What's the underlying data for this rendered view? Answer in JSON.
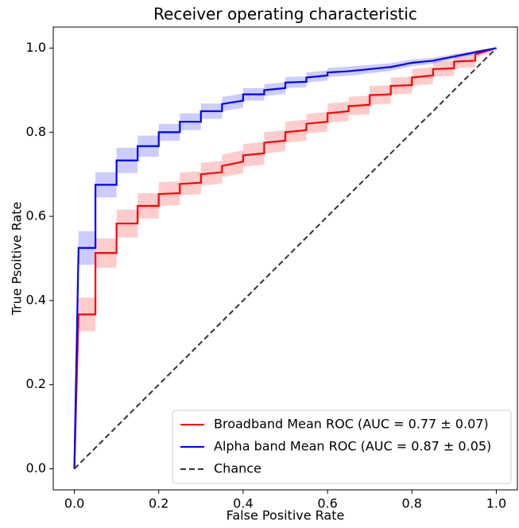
{
  "chart_data": {
    "type": "line",
    "title": "Receiver operating characteristic",
    "x_label": "False Positive Rate",
    "y_label": "True Psoitive Rate",
    "xlim": [
      -0.05,
      1.05
    ],
    "ylim": [
      -0.05,
      1.05
    ],
    "xticks": [
      {
        "value": 0,
        "label": "0.0"
      },
      0.2,
      0.4,
      0.6,
      0.8,
      {
        "value": 1,
        "label": "1.0"
      }
    ],
    "yticks": [
      {
        "value": 0,
        "label": "0.0"
      },
      0.2,
      0.4,
      0.6,
      0.8,
      {
        "value": 1,
        "label": "1.0"
      }
    ],
    "legend": "lower right",
    "series": [
      {
        "name": "Broadband Mean ROC (AUC = 0.77 ± 0.07)",
        "color": "#ff0000",
        "x": [
          0,
          0.01,
          0.05,
          0.05,
          0.1,
          0.1,
          0.15,
          0.15,
          0.2,
          0.2,
          0.25,
          0.25,
          0.3,
          0.3,
          0.35,
          0.35,
          0.4,
          0.4,
          0.45,
          0.45,
          0.5,
          0.5,
          0.55,
          0.55,
          0.6,
          0.6,
          0.65,
          0.65,
          0.7,
          0.7,
          0.75,
          0.75,
          0.8,
          0.8,
          0.85,
          0.85,
          0.9,
          0.9,
          0.95,
          0.95,
          1
        ],
        "values": [
          0,
          0.367,
          0.367,
          0.513,
          0.513,
          0.583,
          0.583,
          0.625,
          0.625,
          0.653,
          0.655,
          0.677,
          0.68,
          0.7,
          0.705,
          0.72,
          0.73,
          0.745,
          0.75,
          0.775,
          0.78,
          0.8,
          0.805,
          0.82,
          0.825,
          0.845,
          0.85,
          0.862,
          0.865,
          0.888,
          0.89,
          0.91,
          0.912,
          0.93,
          0.935,
          0.95,
          0.952,
          0.968,
          0.97,
          0.985,
          1
        ],
        "lower": [
          0,
          0.327,
          0.327,
          0.478,
          0.478,
          0.55,
          0.55,
          0.595,
          0.595,
          0.625,
          0.627,
          0.65,
          0.653,
          0.673,
          0.678,
          0.693,
          0.703,
          0.718,
          0.723,
          0.75,
          0.755,
          0.775,
          0.78,
          0.797,
          0.802,
          0.822,
          0.827,
          0.84,
          0.843,
          0.866,
          0.868,
          0.89,
          0.892,
          0.91,
          0.915,
          0.932,
          0.934,
          0.952,
          0.954,
          0.975,
          1
        ],
        "upper": [
          0,
          0.407,
          0.407,
          0.548,
          0.548,
          0.616,
          0.616,
          0.655,
          0.655,
          0.681,
          0.683,
          0.704,
          0.707,
          0.727,
          0.732,
          0.747,
          0.757,
          0.772,
          0.777,
          0.8,
          0.805,
          0.825,
          0.83,
          0.843,
          0.848,
          0.868,
          0.873,
          0.884,
          0.887,
          0.91,
          0.912,
          0.93,
          0.932,
          0.95,
          0.955,
          0.968,
          0.97,
          0.984,
          0.986,
          0.995,
          1
        ]
      },
      {
        "name": "Alpha band Mean ROC (AUC = 0.87 ± 0.05)",
        "color": "#0000ff",
        "x": [
          0,
          0.01,
          0.05,
          0.05,
          0.1,
          0.1,
          0.15,
          0.15,
          0.2,
          0.2,
          0.25,
          0.25,
          0.3,
          0.3,
          0.35,
          0.35,
          0.4,
          0.4,
          0.45,
          0.45,
          0.5,
          0.5,
          0.55,
          0.55,
          0.6,
          0.6,
          0.65,
          0.7,
          0.75,
          0.8,
          0.85,
          0.9,
          0.95,
          1
        ],
        "values": [
          0,
          0.525,
          0.525,
          0.675,
          0.675,
          0.733,
          0.733,
          0.767,
          0.767,
          0.8,
          0.8,
          0.825,
          0.825,
          0.85,
          0.85,
          0.867,
          0.875,
          0.89,
          0.89,
          0.9,
          0.905,
          0.918,
          0.92,
          0.93,
          0.935,
          0.942,
          0.945,
          0.95,
          0.955,
          0.965,
          0.97,
          0.98,
          0.99,
          1
        ],
        "lower": [
          0,
          0.485,
          0.485,
          0.645,
          0.645,
          0.703,
          0.703,
          0.742,
          0.742,
          0.78,
          0.78,
          0.805,
          0.805,
          0.832,
          0.832,
          0.85,
          0.858,
          0.875,
          0.875,
          0.886,
          0.891,
          0.905,
          0.907,
          0.918,
          0.923,
          0.931,
          0.934,
          0.94,
          0.946,
          0.957,
          0.963,
          0.974,
          0.986,
          1
        ],
        "upper": [
          0,
          0.565,
          0.565,
          0.705,
          0.705,
          0.763,
          0.763,
          0.792,
          0.792,
          0.82,
          0.82,
          0.845,
          0.845,
          0.868,
          0.868,
          0.884,
          0.892,
          0.905,
          0.905,
          0.914,
          0.919,
          0.931,
          0.933,
          0.942,
          0.947,
          0.953,
          0.956,
          0.96,
          0.964,
          0.973,
          0.977,
          0.986,
          0.994,
          1
        ]
      },
      {
        "name": "Chance",
        "color": "#333333",
        "dash": true,
        "x": [
          0,
          1
        ],
        "values": [
          0,
          1
        ]
      }
    ]
  }
}
